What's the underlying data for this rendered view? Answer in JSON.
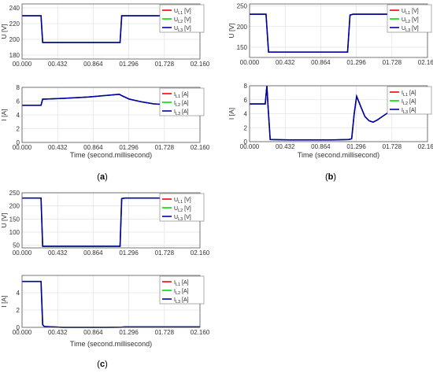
{
  "chart_data": [
    {
      "type": "line",
      "panel_label": "(a)",
      "xlabel": "Time (second.millisecond)",
      "xlim": [
        0.0,
        2.16
      ],
      "x_ticks": [
        "00.000",
        "00.432",
        "00.864",
        "01.296",
        "01.728",
        "02.160"
      ],
      "subplots": [
        {
          "ylabel": "U [V]",
          "ylim": [
            175,
            245
          ],
          "y_ticks": [
            "180",
            "200",
            "220",
            "240"
          ],
          "grid": true,
          "legend": {
            "position": "top-right",
            "entries": [
              {
                "base": "U",
                "sub": "L1",
                "unit": "[V]",
                "color": "#ff0000"
              },
              {
                "base": "U",
                "sub": "L2",
                "unit": "[V]",
                "color": "#00dd00"
              },
              {
                "base": "U",
                "sub": "L3",
                "unit": "[V]",
                "color": "#0000aa"
              }
            ]
          },
          "series": [
            {
              "x": [
                0.0,
                0.23,
                0.25,
                0.26,
                1.19,
                1.21,
                1.25,
                2.16
              ],
              "y": [
                230,
                230,
                196,
                196,
                196,
                230,
                230,
                230
              ]
            }
          ]
        },
        {
          "ylabel": "I [A]",
          "ylim": [
            0,
            8
          ],
          "y_ticks": [
            "0",
            "2",
            "4",
            "6",
            "8"
          ],
          "grid": true,
          "legend": {
            "position": "top-right",
            "entries": [
              {
                "base": "I",
                "sub": "L1",
                "unit": "[A]",
                "color": "#ff0000"
              },
              {
                "base": "I",
                "sub": "L2",
                "unit": "[A]",
                "color": "#00dd00"
              },
              {
                "base": "I",
                "sub": "L3",
                "unit": "[A]",
                "color": "#0000aa"
              }
            ]
          },
          "series": [
            {
              "x": [
                0.0,
                0.23,
                0.25,
                0.28,
                0.5,
                0.8,
                1.0,
                1.18,
                1.21,
                1.3,
                1.45,
                1.6,
                1.75,
                2.16
              ],
              "y": [
                5.4,
                5.4,
                6.3,
                6.3,
                6.4,
                6.6,
                6.8,
                7.0,
                6.8,
                6.3,
                5.9,
                5.6,
                5.5,
                5.4
              ]
            }
          ]
        }
      ]
    },
    {
      "type": "line",
      "panel_label": "(b)",
      "xlabel": "Time (second.millisecond)",
      "xlim": [
        0.0,
        2.16
      ],
      "x_ticks": [
        "00.000",
        "00.432",
        "00.864",
        "01.296",
        "01.728",
        "02.160"
      ],
      "subplots": [
        {
          "ylabel": "U [V]",
          "ylim": [
            125,
            255
          ],
          "y_ticks": [
            "150",
            "200",
            "250"
          ],
          "grid": true,
          "legend": {
            "position": "top-right",
            "entries": [
              {
                "base": "U",
                "sub": "L1",
                "unit": "[V]",
                "color": "#ff0000"
              },
              {
                "base": "U",
                "sub": "L2",
                "unit": "[V]",
                "color": "#00dd00"
              },
              {
                "base": "U",
                "sub": "L3",
                "unit": "[V]",
                "color": "#0000aa"
              }
            ]
          },
          "series": [
            {
              "x": [
                0.0,
                0.2,
                0.23,
                0.25,
                1.19,
                1.22,
                1.26,
                2.16
              ],
              "y": [
                230,
                230,
                138,
                138,
                138,
                228,
                230,
                230
              ]
            }
          ]
        },
        {
          "ylabel": "I [A]",
          "ylim": [
            0,
            8
          ],
          "y_ticks": [
            "0",
            "2",
            "4",
            "6",
            "8"
          ],
          "grid": true,
          "legend": {
            "position": "top-right",
            "entries": [
              {
                "base": "I",
                "sub": "L1",
                "unit": "[A]",
                "color": "#ff0000"
              },
              {
                "base": "I",
                "sub": "L2",
                "unit": "[A]",
                "color": "#00dd00"
              },
              {
                "base": "I",
                "sub": "L3",
                "unit": "[A]",
                "color": "#0000aa"
              }
            ]
          },
          "series": [
            {
              "x": [
                0.0,
                0.19,
                0.21,
                0.225,
                0.25,
                0.5,
                1.0,
                1.2,
                1.24,
                1.27,
                1.3,
                1.35,
                1.4,
                1.45,
                1.5,
                1.55,
                1.6,
                1.7,
                1.76,
                1.85
              ],
              "y": [
                5.4,
                5.4,
                8.0,
                5.0,
                0.3,
                0.25,
                0.25,
                0.3,
                0.4,
                4.0,
                6.5,
                5.0,
                3.6,
                3.0,
                2.8,
                3.1,
                3.5,
                4.3,
                5.0,
                5.5
              ]
            }
          ]
        }
      ]
    },
    {
      "type": "line",
      "panel_label": "(c)",
      "xlabel": "Time (second.millisecond)",
      "xlim": [
        0.0,
        2.16
      ],
      "x_ticks": [
        "00.000",
        "00.432",
        "00.864",
        "01.296",
        "01.728",
        "02.160"
      ],
      "subplots": [
        {
          "ylabel": "U [V]",
          "ylim": [
            40,
            250
          ],
          "y_ticks": [
            "50",
            "100",
            "150",
            "200",
            "250"
          ],
          "grid": true,
          "legend": {
            "position": "top-right",
            "entries": [
              {
                "base": "U",
                "sub": "L1",
                "unit": "[V]",
                "color": "#ff0000"
              },
              {
                "base": "U",
                "sub": "L2",
                "unit": "[V]",
                "color": "#00dd00"
              },
              {
                "base": "U",
                "sub": "L3",
                "unit": "[V]",
                "color": "#0000aa"
              }
            ]
          },
          "series": [
            {
              "x": [
                0.0,
                0.23,
                0.25,
                0.26,
                1.19,
                1.21,
                1.25,
                2.16
              ],
              "y": [
                230,
                230,
                46,
                46,
                46,
                228,
                230,
                230
              ]
            }
          ]
        },
        {
          "ylabel": "I [A]",
          "ylim": [
            0,
            6
          ],
          "y_ticks": [
            "0",
            "2",
            "4"
          ],
          "grid": true,
          "legend": {
            "position": "top-right",
            "entries": [
              {
                "base": "I",
                "sub": "L1",
                "unit": "[A]",
                "color": "#ff0000"
              },
              {
                "base": "I",
                "sub": "L2",
                "unit": "[A]",
                "color": "#00dd00"
              },
              {
                "base": "I",
                "sub": "L3",
                "unit": "[A]",
                "color": "#0000aa"
              }
            ]
          },
          "series": [
            {
              "x": [
                0.0,
                0.23,
                0.25,
                0.27,
                0.5,
                1.0,
                1.2,
                1.25,
                2.16
              ],
              "y": [
                5.3,
                5.3,
                0.3,
                0.1,
                0.0,
                0.0,
                0.02,
                0.05,
                0.05
              ]
            }
          ]
        }
      ]
    }
  ]
}
